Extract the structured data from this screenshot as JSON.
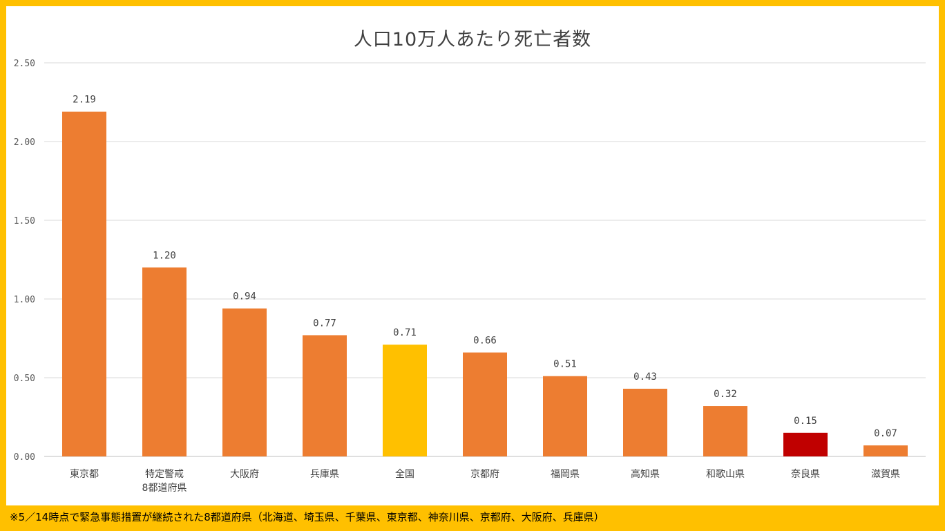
{
  "chart_data": {
    "type": "bar",
    "title": "人口10万人あたり死亡者数",
    "categories": [
      "東京都",
      "特定警戒\n8都道府県",
      "大阪府",
      "兵庫県",
      "全国",
      "京都府",
      "福岡県",
      "高知県",
      "和歌山県",
      "奈良県",
      "滋賀県"
    ],
    "values": [
      2.19,
      1.2,
      0.94,
      0.77,
      0.71,
      0.66,
      0.51,
      0.43,
      0.32,
      0.15,
      0.07
    ],
    "value_labels": [
      "2.19",
      "1.20",
      "0.94",
      "0.77",
      "0.71",
      "0.66",
      "0.51",
      "0.43",
      "0.32",
      "0.15",
      "0.07"
    ],
    "bar_colors": [
      "#ED7D31",
      "#ED7D31",
      "#ED7D31",
      "#ED7D31",
      "#FFC000",
      "#ED7D31",
      "#ED7D31",
      "#ED7D31",
      "#ED7D31",
      "#C00000",
      "#ED7D31"
    ],
    "y_ticks": [
      "0.00",
      "0.50",
      "1.00",
      "1.50",
      "2.00",
      "2.50"
    ],
    "ylim": [
      0,
      2.5
    ],
    "grid": true,
    "legend": "none"
  },
  "footnote": "※5／14時点で緊急事態措置が継続された8都道府県（北海道、埼玉県、千葉県、東京都、神奈川県、京都府、大阪府、兵庫県）",
  "colors": {
    "frame": "#FFC000",
    "bar_default": "#ED7D31",
    "bar_national": "#FFC000",
    "bar_nara": "#C00000"
  }
}
